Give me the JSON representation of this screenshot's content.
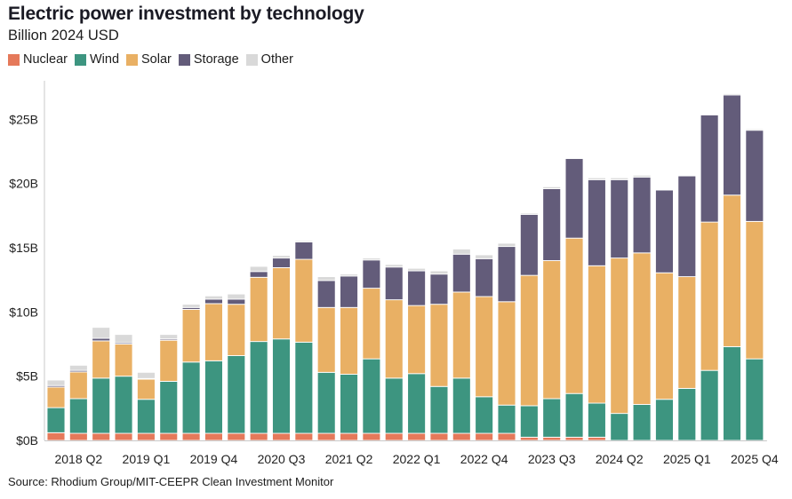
{
  "chart_data": {
    "type": "bar",
    "stacked": true,
    "title": "Electric power investment by technology",
    "subtitle": "Billion 2024 USD",
    "xlabel": "",
    "ylabel": "",
    "ylim": [
      0,
      28
    ],
    "yticks": [
      0,
      5,
      10,
      15,
      20,
      25
    ],
    "ytick_labels": [
      "$0B",
      "$5B",
      "$10B",
      "$15B",
      "$20B",
      "$25B"
    ],
    "grid": false,
    "legend_position": "top-left",
    "categories": [
      "2018 Q1",
      "2018 Q2",
      "2018 Q3",
      "2018 Q4",
      "2019 Q1",
      "2019 Q2",
      "2019 Q3",
      "2019 Q4",
      "2020 Q1",
      "2020 Q2",
      "2020 Q3",
      "2020 Q4",
      "2021 Q1",
      "2021 Q2",
      "2021 Q3",
      "2021 Q4",
      "2022 Q1",
      "2022 Q2",
      "2022 Q3",
      "2022 Q4",
      "2023 Q1",
      "2023 Q2",
      "2023 Q3",
      "2023 Q4",
      "2024 Q1",
      "2024 Q2",
      "2024 Q3",
      "2024 Q4",
      "2025 Q1",
      "2025 Q2",
      "2025 Q3",
      "2025 Q4"
    ],
    "xtick_labels": [
      "2018 Q2",
      "2019 Q1",
      "2019 Q4",
      "2020 Q3",
      "2021 Q2",
      "2022 Q1",
      "2022 Q4",
      "2023 Q3",
      "2024 Q2",
      "2025 Q1",
      "2025 Q4"
    ],
    "series": [
      {
        "name": "Nuclear",
        "color": "#E5795A",
        "values": [
          0.6,
          0.55,
          0.55,
          0.55,
          0.55,
          0.55,
          0.55,
          0.55,
          0.55,
          0.55,
          0.55,
          0.55,
          0.55,
          0.55,
          0.55,
          0.55,
          0.55,
          0.55,
          0.55,
          0.55,
          0.55,
          0.25,
          0.25,
          0.25,
          0.25,
          0,
          0,
          0,
          0,
          0,
          0,
          0
        ]
      },
      {
        "name": "Wind",
        "color": "#3D9580",
        "values": [
          1.95,
          2.7,
          4.3,
          4.45,
          2.65,
          4.05,
          5.55,
          5.65,
          6.05,
          7.15,
          7.35,
          7.1,
          4.75,
          4.6,
          5.8,
          4.3,
          4.65,
          3.65,
          4.3,
          2.85,
          2.2,
          2.45,
          3.0,
          3.4,
          2.65,
          2.1,
          2.8,
          3.2,
          4.05,
          5.45,
          7.3,
          6.35
        ]
      },
      {
        "name": "Solar",
        "color": "#E9B064",
        "values": [
          1.6,
          2.08,
          2.9,
          2.5,
          1.6,
          3.2,
          4.1,
          4.45,
          4.0,
          5.0,
          5.55,
          6.45,
          5.05,
          5.2,
          5.5,
          6.1,
          5.3,
          6.4,
          6.7,
          7.8,
          8.05,
          10.15,
          10.75,
          12.1,
          10.7,
          12.1,
          11.8,
          9.85,
          8.7,
          11.55,
          11.8,
          10.7
        ]
      },
      {
        "name": "Storage",
        "color": "#635C7A",
        "values": [
          0.12,
          0.12,
          0.2,
          0.1,
          0.02,
          0.1,
          0.15,
          0.35,
          0.4,
          0.45,
          0.75,
          1.35,
          2.1,
          2.45,
          2.2,
          2.55,
          2.7,
          2.35,
          2.95,
          2.95,
          4.3,
          4.75,
          5.6,
          6.2,
          6.7,
          6.1,
          5.9,
          6.45,
          7.85,
          8.35,
          7.8,
          7.1
        ]
      },
      {
        "name": "Other",
        "color": "#D9D9D9",
        "values": [
          0.43,
          0.4,
          0.85,
          0.65,
          0.48,
          0.35,
          0.25,
          0.25,
          0.4,
          0.4,
          0.2,
          0.1,
          0.3,
          0.15,
          0.15,
          0.2,
          0.2,
          0.25,
          0.4,
          0.3,
          0.25,
          0.1,
          0.15,
          0.05,
          0.15,
          0.15,
          0.15,
          0.05,
          0.05,
          0.05,
          0.1,
          0.1
        ]
      }
    ],
    "source": "Source: Rhodium Group/MIT-CEEPR Clean Investment Monitor"
  }
}
